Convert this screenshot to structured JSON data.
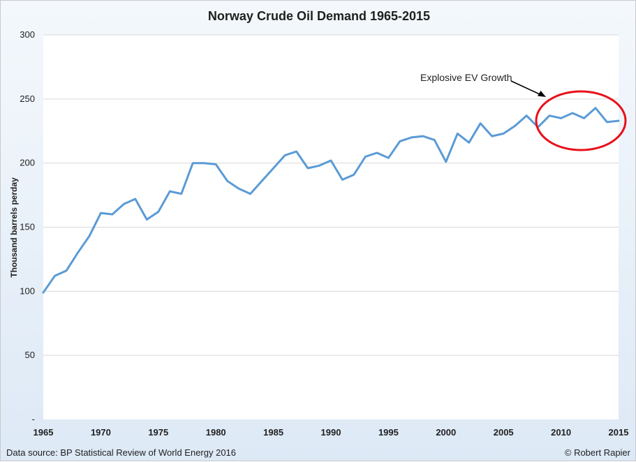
{
  "chart_data": {
    "type": "line",
    "title": "Norway Crude Oil Demand 1965-2015",
    "xlabel": "",
    "ylabel": "Thousand barrels perday",
    "xlim": [
      1965,
      2015
    ],
    "ylim": [
      0,
      300
    ],
    "y_ticks": [
      "-",
      "50",
      "100",
      "150",
      "200",
      "250",
      "300"
    ],
    "x_ticks": [
      "1965",
      "1970",
      "1975",
      "1980",
      "1985",
      "1990",
      "1995",
      "2000",
      "2005",
      "2010",
      "2015"
    ],
    "grid": "horizontal",
    "legend": "none",
    "series_color": "#5b9bd5",
    "highlight_color": "#e8101a",
    "annotation": "Explosive EV Growth",
    "x": [
      1965,
      1966,
      1967,
      1968,
      1969,
      1970,
      1971,
      1972,
      1973,
      1974,
      1975,
      1976,
      1977,
      1978,
      1979,
      1980,
      1981,
      1982,
      1983,
      1984,
      1985,
      1986,
      1987,
      1988,
      1989,
      1990,
      1991,
      1992,
      1993,
      1994,
      1995,
      1996,
      1997,
      1998,
      1999,
      2000,
      2001,
      2002,
      2003,
      2004,
      2005,
      2006,
      2007,
      2008,
      2009,
      2010,
      2011,
      2012,
      2013,
      2014,
      2015
    ],
    "values": [
      99,
      112,
      116,
      130,
      143,
      161,
      160,
      168,
      172,
      156,
      162,
      178,
      176,
      200,
      200,
      199,
      186,
      180,
      176,
      186,
      196,
      206,
      209,
      196,
      198,
      202,
      187,
      191,
      205,
      208,
      204,
      217,
      220,
      221,
      218,
      201,
      223,
      216,
      231,
      221,
      223,
      229,
      237,
      228,
      237,
      235,
      239,
      235,
      243,
      232,
      233
    ]
  },
  "footer": {
    "source": "Data source: BP Statistical Review of World Energy 2016",
    "copyright": "© Robert Rapier"
  }
}
